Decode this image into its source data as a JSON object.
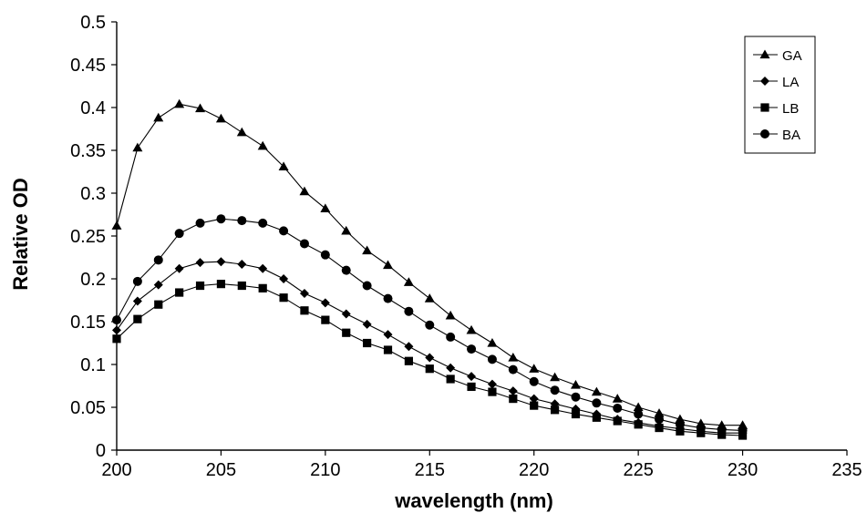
{
  "chart_data": {
    "type": "line",
    "title": "",
    "xlabel": "wavelength (nm)",
    "ylabel": "Relative OD",
    "xlim": [
      200,
      235
    ],
    "ylim": [
      0,
      0.5
    ],
    "xticks": [
      200,
      205,
      210,
      215,
      220,
      225,
      230,
      235
    ],
    "yticks": [
      0,
      0.05,
      0.1,
      0.15,
      0.2,
      0.25,
      0.3,
      0.35,
      0.4,
      0.45,
      0.5
    ],
    "xtick_labels": [
      "200",
      "205",
      "210",
      "215",
      "220",
      "225",
      "230",
      "235"
    ],
    "ytick_labels": [
      "0",
      "0.05",
      "0.1",
      "0.15",
      "0.2",
      "0.25",
      "0.3",
      "0.35",
      "0.4",
      "0.45",
      "0.5"
    ],
    "grid": false,
    "legend_position": "top-right",
    "x": [
      200,
      201,
      202,
      203,
      204,
      205,
      206,
      207,
      208,
      209,
      210,
      211,
      212,
      213,
      214,
      215,
      216,
      217,
      218,
      219,
      220,
      221,
      222,
      223,
      224,
      225,
      226,
      227,
      228,
      229,
      230
    ],
    "series": [
      {
        "name": "GA",
        "marker": "triangle",
        "values": [
          0.262,
          0.353,
          0.388,
          0.404,
          0.399,
          0.387,
          0.371,
          0.355,
          0.331,
          0.302,
          0.282,
          0.256,
          0.233,
          0.216,
          0.196,
          0.177,
          0.157,
          0.14,
          0.125,
          0.108,
          0.095,
          0.085,
          0.076,
          0.068,
          0.06,
          0.05,
          0.043,
          0.036,
          0.031,
          0.029,
          0.029
        ]
      },
      {
        "name": "LA",
        "marker": "diamond",
        "values": [
          0.14,
          0.174,
          0.193,
          0.212,
          0.219,
          0.22,
          0.217,
          0.212,
          0.2,
          0.183,
          0.172,
          0.159,
          0.147,
          0.135,
          0.121,
          0.108,
          0.096,
          0.086,
          0.077,
          0.069,
          0.06,
          0.054,
          0.048,
          0.042,
          0.036,
          0.032,
          0.028,
          0.025,
          0.022,
          0.02,
          0.02
        ]
      },
      {
        "name": "LB",
        "marker": "square",
        "values": [
          0.13,
          0.153,
          0.17,
          0.184,
          0.192,
          0.194,
          0.192,
          0.189,
          0.178,
          0.163,
          0.152,
          0.137,
          0.125,
          0.117,
          0.104,
          0.095,
          0.083,
          0.074,
          0.068,
          0.06,
          0.052,
          0.047,
          0.042,
          0.038,
          0.034,
          0.03,
          0.026,
          0.022,
          0.02,
          0.018,
          0.017
        ]
      },
      {
        "name": "BA",
        "marker": "circle",
        "values": [
          0.152,
          0.197,
          0.222,
          0.253,
          0.265,
          0.27,
          0.268,
          0.265,
          0.256,
          0.241,
          0.228,
          0.21,
          0.192,
          0.177,
          0.162,
          0.146,
          0.132,
          0.118,
          0.106,
          0.094,
          0.08,
          0.07,
          0.062,
          0.055,
          0.049,
          0.042,
          0.036,
          0.03,
          0.026,
          0.024,
          0.023
        ]
      }
    ]
  }
}
